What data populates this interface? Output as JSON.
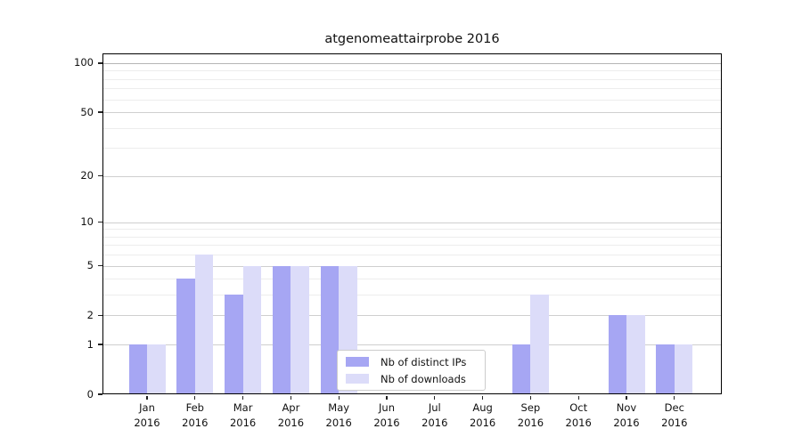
{
  "title": "atgenomeattairprobe 2016",
  "chart_data": {
    "type": "bar",
    "title": "atgenomeattairprobe 2016",
    "year": "2016",
    "months": [
      "Jan",
      "Feb",
      "Mar",
      "Apr",
      "May",
      "Jun",
      "Jul",
      "Aug",
      "Sep",
      "Oct",
      "Nov",
      "Dec"
    ],
    "categories": [
      "Jan 2016",
      "Feb 2016",
      "Mar 2016",
      "Apr 2016",
      "May 2016",
      "Jun 2016",
      "Jul 2016",
      "Aug 2016",
      "Sep 2016",
      "Oct 2016",
      "Nov 2016",
      "Dec 2016"
    ],
    "series": [
      {
        "name": "Nb of distinct IPs",
        "color": "#a6a6f3",
        "values": [
          1,
          4,
          3,
          5,
          5,
          0,
          0,
          0,
          1,
          0,
          2,
          1
        ]
      },
      {
        "name": "Nb of downloads",
        "color": "#dcdcf9",
        "values": [
          1,
          6,
          5,
          5,
          5,
          0,
          0,
          0,
          3,
          0,
          2,
          1
        ]
      }
    ],
    "yscale": "log1p",
    "ylim": [
      0,
      115
    ],
    "yticks": [
      0,
      1,
      2,
      5,
      10,
      20,
      50,
      100
    ],
    "ytick_labels": [
      "0",
      "1",
      "2",
      "5",
      "10",
      "20",
      "50",
      "100"
    ],
    "yticks_minor": [
      3,
      4,
      6,
      7,
      8,
      9,
      30,
      40,
      60,
      70,
      80,
      90
    ],
    "grid": "horizontal",
    "legend_position": "lower center",
    "colors": {
      "grid_major": "#cfcfcf",
      "grid_minor": "#ededed",
      "grid_top": "#b5b5b5",
      "axis": "#000000",
      "text": "#111111",
      "background": "#ffffff"
    }
  }
}
